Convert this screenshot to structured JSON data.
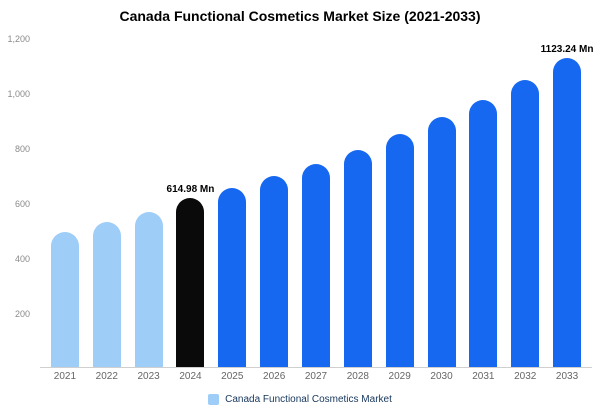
{
  "chart_data": {
    "type": "bar",
    "title": "Canada Functional Cosmetics Market Size (2021-2033)",
    "xlabel": "",
    "ylabel": "",
    "categories": [
      "2021",
      "2022",
      "2023",
      "2024",
      "2025",
      "2026",
      "2027",
      "2028",
      "2029",
      "2030",
      "2031",
      "2032",
      "2033"
    ],
    "values": [
      490,
      527,
      563,
      614.98,
      652,
      693,
      740,
      790,
      848,
      908,
      970,
      1044,
      1123.24
    ],
    "value_labels": {
      "2024": "614.98 Mn",
      "2033": "1123.24 Mn"
    },
    "ylim": [
      0,
      1200
    ],
    "yticks": [
      200,
      400,
      600,
      800,
      1000,
      1200
    ],
    "ytick_labels": [
      "200",
      "400",
      "600",
      "800",
      "1,000",
      "1,200"
    ],
    "grid": false,
    "colors": {
      "past": "#9ecdf8",
      "current": "#0a0a0a",
      "forecast": "#1668f0"
    },
    "color_map": [
      "past",
      "past",
      "past",
      "current",
      "forecast",
      "forecast",
      "forecast",
      "forecast",
      "forecast",
      "forecast",
      "forecast",
      "forecast",
      "forecast"
    ],
    "legend": {
      "position": "bottom",
      "label": "Canada Functional Cosmetics Market",
      "swatch_color": "#9ecdf8"
    }
  }
}
